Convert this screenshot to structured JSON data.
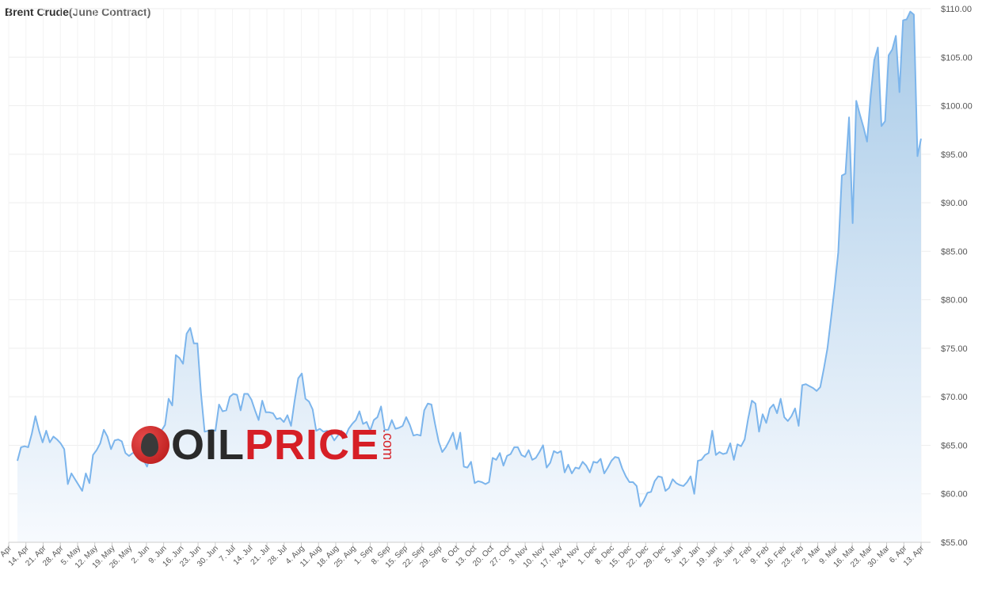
{
  "title": "Brent Crude",
  "subtitle": "(June Contract)",
  "logo": {
    "part1": "OIL",
    "part2": "PRICE",
    "part3": ".com"
  },
  "colors": {
    "line": "#7cb5ec",
    "fill_top": "#a9cbe8",
    "fill_bottom": "#f7fafe",
    "grid": "#eeeeee"
  },
  "chart_data": {
    "type": "area",
    "title": "Brent Crude(June Contract)",
    "xlabel": "",
    "ylabel": "",
    "ylim": [
      55,
      110
    ],
    "grid": true,
    "y_axis_side": "right",
    "yticks": [
      "$55.00",
      "$60.00",
      "$65.00",
      "$70.00",
      "$75.00",
      "$80.00",
      "$85.00",
      "$90.00",
      "$95.00",
      "$100.00",
      "$105.00",
      "$110.00"
    ],
    "xticks": [
      "Apr",
      "14. Apr",
      "21. Apr",
      "28. Apr",
      "5. May",
      "12. May",
      "19. May",
      "26. May",
      "2. Jun",
      "9. Jun",
      "16. Jun",
      "23. Jun",
      "30. Jun",
      "7. Jul",
      "14. Jul",
      "21. Jul",
      "28. Jul",
      "4. Aug",
      "11. Aug",
      "18. Aug",
      "25. Aug",
      "1. Sep",
      "8. Sep",
      "15. Sep",
      "22. Sep",
      "29. Sep",
      "6. Oct",
      "13. Oct",
      "20. Oct",
      "27. Oct",
      "3. Nov",
      "10. Nov",
      "17. Nov",
      "24. Nov",
      "1. Dec",
      "8. Dec",
      "15. Dec",
      "22. Dec",
      "29. Dec",
      "5. Jan",
      "12. Jan",
      "19. Jan",
      "26. Jan",
      "2. Feb",
      "9. Feb",
      "16. Feb",
      "23. Feb",
      "2. Mar",
      "9. Mar",
      "16. Mar",
      "23. Mar",
      "30. Mar",
      "6. Apr",
      "13. Apr"
    ],
    "series": [
      {
        "values": [
          63.4,
          64.8,
          64.9,
          64.8,
          66.2,
          68.0,
          66.5,
          65.3,
          66.5,
          65.3,
          65.9,
          65.6,
          65.2,
          64.6,
          61.0,
          62.1,
          61.5,
          60.9,
          60.3,
          62.1,
          61.1,
          64.0,
          64.5,
          65.2,
          66.6,
          65.9,
          64.6,
          65.5,
          65.6,
          65.4,
          64.2,
          63.9,
          64.2,
          64.2,
          64.0,
          63.5,
          62.8,
          64.0,
          64.8,
          65.2,
          66.5,
          67.1,
          69.8,
          69.1,
          74.3,
          74.0,
          73.4,
          76.5,
          77.1,
          75.5,
          75.5,
          70.3,
          66.4,
          66.5,
          66.6,
          66.5,
          69.2,
          68.5,
          68.6,
          70.0,
          70.3,
          70.2,
          68.6,
          70.3,
          70.3,
          69.7,
          68.6,
          67.6,
          69.6,
          68.4,
          68.4,
          68.3,
          67.7,
          67.8,
          67.4,
          68.1,
          67.0,
          69.6,
          71.9,
          72.4,
          69.8,
          69.5,
          68.7,
          66.5,
          66.7,
          66.4,
          66.5,
          66.2,
          65.5,
          66.0,
          66.5,
          65.8,
          66.7,
          67.2,
          67.6,
          68.5,
          67.2,
          67.4,
          66.5,
          67.6,
          67.9,
          69.0,
          66.6,
          66.6,
          67.6,
          66.7,
          66.8,
          67.0,
          67.9,
          67.1,
          66.0,
          66.1,
          66.0,
          68.6,
          69.3,
          69.2,
          67.2,
          65.4,
          64.3,
          64.8,
          65.5,
          66.3,
          64.6,
          66.3,
          62.8,
          62.7,
          63.3,
          61.1,
          61.3,
          61.2,
          61.0,
          61.2,
          63.7,
          63.5,
          64.2,
          62.9,
          63.9,
          64.1,
          64.8,
          64.8,
          64.0,
          63.8,
          64.5,
          63.5,
          63.7,
          64.3,
          65.0,
          62.7,
          63.2,
          64.4,
          64.2,
          64.4,
          62.2,
          63.0,
          62.1,
          62.7,
          62.6,
          63.3,
          62.9,
          62.2,
          63.3,
          63.2,
          63.6,
          62.1,
          62.7,
          63.4,
          63.8,
          63.7,
          62.6,
          61.8,
          61.2,
          61.2,
          60.8,
          58.7,
          59.3,
          60.1,
          60.2,
          61.3,
          61.8,
          61.7,
          60.3,
          60.6,
          61.5,
          61.1,
          60.9,
          60.8,
          61.2,
          61.8,
          60.0,
          63.4,
          63.5,
          64.0,
          64.2,
          66.5,
          64.0,
          64.3,
          64.1,
          64.2,
          65.2,
          63.5,
          65.1,
          64.9,
          65.6,
          67.8,
          69.6,
          69.3,
          66.4,
          68.2,
          67.3,
          68.8,
          69.2,
          68.3,
          69.8,
          67.9,
          67.5,
          68.0,
          68.8,
          67.0,
          71.2,
          71.3,
          71.1,
          70.9,
          70.6,
          71.0,
          72.9,
          75.0,
          78.1,
          81.3,
          84.9,
          92.8,
          93.0,
          98.8,
          87.9,
          100.5,
          99.1,
          97.8,
          96.3,
          101.0,
          104.7,
          106.0,
          97.9,
          98.4,
          105.2,
          105.8,
          107.2,
          101.4,
          108.8,
          108.9,
          109.7,
          109.4,
          94.8,
          96.6
        ]
      }
    ]
  }
}
